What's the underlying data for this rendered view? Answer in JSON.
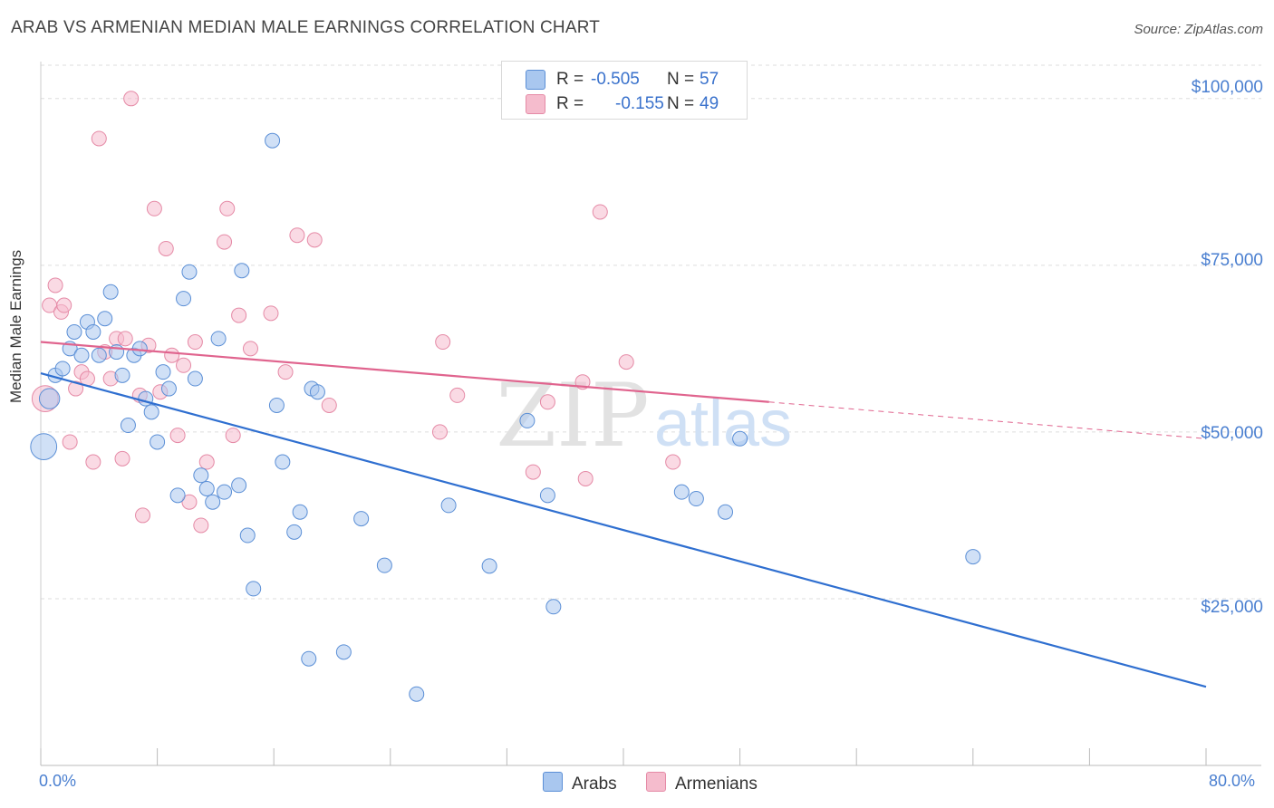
{
  "header": {
    "title": "ARAB VS ARMENIAN MEDIAN MALE EARNINGS CORRELATION CHART",
    "source": "Source: ZipAtlas.com"
  },
  "watermark": {
    "zip": "ZIP",
    "atlas": "atlas"
  },
  "colors": {
    "arabs_fill": "#a9c7ef",
    "arabs_stroke": "#5b8fd6",
    "arabs_line": "#2f6fd0",
    "armenians_fill": "#f5bccd",
    "armenians_stroke": "#e58aa6",
    "armenians_line": "#e0648e",
    "tick_text": "#4a7fd0",
    "grid": "#dddddd"
  },
  "legend": {
    "rows": [
      {
        "r_label": "R =",
        "r_value": "-0.505",
        "n_label": "N =",
        "n_value": "57"
      },
      {
        "r_label": "R =",
        "r_value": "-0.155",
        "n_label": "N =",
        "n_value": "49"
      }
    ]
  },
  "chart_data": {
    "type": "scatter",
    "title": "ARAB VS ARMENIAN MEDIAN MALE EARNINGS CORRELATION CHART",
    "xlabel": "",
    "ylabel": "Median Male Earnings",
    "xlim": [
      0,
      80
    ],
    "ylim": [
      0,
      105000
    ],
    "x_tick_labels": [
      "0.0%",
      "80.0%"
    ],
    "y_ticks": [
      25000,
      50000,
      75000,
      100000
    ],
    "y_tick_labels": [
      "$25,000",
      "$50,000",
      "$75,000",
      "$100,000"
    ],
    "legend_position": "top-center",
    "series": [
      {
        "name": "Arabs",
        "r": -0.505,
        "n": 57,
        "trend": {
          "x": [
            0,
            80
          ],
          "y": [
            58800,
            11800
          ]
        },
        "points": [
          [
            0.2,
            47800,
            1.8
          ],
          [
            0.6,
            55000,
            1.4
          ],
          [
            1.0,
            58500,
            1.0
          ],
          [
            1.5,
            59500,
            1.0
          ],
          [
            2.0,
            62500,
            1.0
          ],
          [
            2.3,
            65000,
            1.0
          ],
          [
            2.8,
            61500,
            1.0
          ],
          [
            3.2,
            66500,
            1.0
          ],
          [
            3.6,
            65000,
            1.0
          ],
          [
            4.0,
            61500,
            1.0
          ],
          [
            4.4,
            67000,
            1.0
          ],
          [
            4.8,
            71000,
            1.0
          ],
          [
            5.2,
            62000,
            1.0
          ],
          [
            5.6,
            58500,
            1.0
          ],
          [
            6.0,
            51000,
            1.0
          ],
          [
            6.4,
            61500,
            1.0
          ],
          [
            6.8,
            62500,
            1.0
          ],
          [
            7.2,
            55000,
            1.0
          ],
          [
            7.6,
            53000,
            1.0
          ],
          [
            8.0,
            48500,
            1.0
          ],
          [
            8.4,
            59000,
            1.0
          ],
          [
            8.8,
            56500,
            1.0
          ],
          [
            9.4,
            40500,
            1.0
          ],
          [
            9.8,
            70000,
            1.0
          ],
          [
            10.2,
            74000,
            1.0
          ],
          [
            10.6,
            58000,
            1.0
          ],
          [
            11.0,
            43500,
            1.0
          ],
          [
            11.4,
            41500,
            1.0
          ],
          [
            11.8,
            39500,
            1.0
          ],
          [
            12.2,
            64000,
            1.0
          ],
          [
            12.6,
            41000,
            1.0
          ],
          [
            13.6,
            42000,
            1.0
          ],
          [
            13.8,
            74200,
            1.0
          ],
          [
            14.2,
            34500,
            1.0
          ],
          [
            14.6,
            26500,
            1.0
          ],
          [
            15.9,
            93700,
            1.0
          ],
          [
            16.2,
            54000,
            1.0
          ],
          [
            16.6,
            45500,
            1.0
          ],
          [
            17.4,
            35000,
            1.0
          ],
          [
            17.8,
            38000,
            1.0
          ],
          [
            18.4,
            16000,
            1.0
          ],
          [
            18.6,
            56500,
            1.0
          ],
          [
            19.0,
            56000,
            1.0
          ],
          [
            20.8,
            17000,
            1.0
          ],
          [
            22.0,
            37000,
            1.0
          ],
          [
            23.6,
            30000,
            1.0
          ],
          [
            25.8,
            10700,
            1.0
          ],
          [
            28.0,
            39000,
            1.0
          ],
          [
            30.8,
            29900,
            1.0
          ],
          [
            33.4,
            51700,
            1.0
          ],
          [
            34.8,
            40500,
            1.0
          ],
          [
            35.2,
            23800,
            1.0
          ],
          [
            44.0,
            41000,
            1.0
          ],
          [
            45.0,
            40000,
            1.0
          ],
          [
            47.0,
            38000,
            1.0
          ],
          [
            48.0,
            49000,
            1.0
          ],
          [
            64.0,
            31300,
            1.0
          ]
        ]
      },
      {
        "name": "Armenians",
        "r": -0.155,
        "n": 49,
        "trend": {
          "x": [
            0,
            50
          ],
          "y": [
            63500,
            54500
          ]
        },
        "trend_dashed": {
          "x": [
            50,
            80
          ],
          "y": [
            54500,
            49000
          ]
        },
        "points": [
          [
            0.3,
            55000,
            1.8
          ],
          [
            0.6,
            69000,
            1.0
          ],
          [
            1.0,
            72000,
            1.0
          ],
          [
            1.4,
            68000,
            1.0
          ],
          [
            1.6,
            69000,
            1.0
          ],
          [
            2.0,
            48500,
            1.0
          ],
          [
            2.4,
            56500,
            1.0
          ],
          [
            2.8,
            59000,
            1.0
          ],
          [
            3.2,
            58000,
            1.0
          ],
          [
            3.6,
            45500,
            1.0
          ],
          [
            4.0,
            94000,
            1.0
          ],
          [
            4.4,
            62000,
            1.0
          ],
          [
            4.8,
            58000,
            1.0
          ],
          [
            5.2,
            64000,
            1.0
          ],
          [
            5.6,
            46000,
            1.0
          ],
          [
            5.8,
            64000,
            1.0
          ],
          [
            6.2,
            100000,
            1.0
          ],
          [
            6.8,
            55500,
            1.0
          ],
          [
            7.0,
            37500,
            1.0
          ],
          [
            7.4,
            63000,
            1.0
          ],
          [
            7.8,
            83500,
            1.0
          ],
          [
            8.2,
            56000,
            1.0
          ],
          [
            8.6,
            77500,
            1.0
          ],
          [
            9.0,
            61500,
            1.0
          ],
          [
            9.4,
            49500,
            1.0
          ],
          [
            9.8,
            60000,
            1.0
          ],
          [
            10.2,
            39500,
            1.0
          ],
          [
            10.6,
            63500,
            1.0
          ],
          [
            11.0,
            36000,
            1.0
          ],
          [
            11.4,
            45500,
            1.0
          ],
          [
            12.6,
            78500,
            1.0
          ],
          [
            12.8,
            83500,
            1.0
          ],
          [
            13.2,
            49500,
            1.0
          ],
          [
            13.6,
            67500,
            1.0
          ],
          [
            14.4,
            62500,
            1.0
          ],
          [
            15.8,
            67800,
            1.0
          ],
          [
            16.8,
            59000,
            1.0
          ],
          [
            17.6,
            79500,
            1.0
          ],
          [
            18.8,
            78800,
            1.0
          ],
          [
            19.8,
            54000,
            1.0
          ],
          [
            27.4,
            50000,
            1.0
          ],
          [
            27.6,
            63500,
            1.0
          ],
          [
            28.6,
            55500,
            1.0
          ],
          [
            33.8,
            44000,
            1.0
          ],
          [
            34.8,
            54500,
            1.0
          ],
          [
            37.2,
            57500,
            1.0
          ],
          [
            37.4,
            43000,
            1.0
          ],
          [
            38.4,
            83000,
            1.0
          ],
          [
            40.2,
            60500,
            1.0
          ],
          [
            43.4,
            45500,
            1.0
          ]
        ]
      }
    ]
  }
}
